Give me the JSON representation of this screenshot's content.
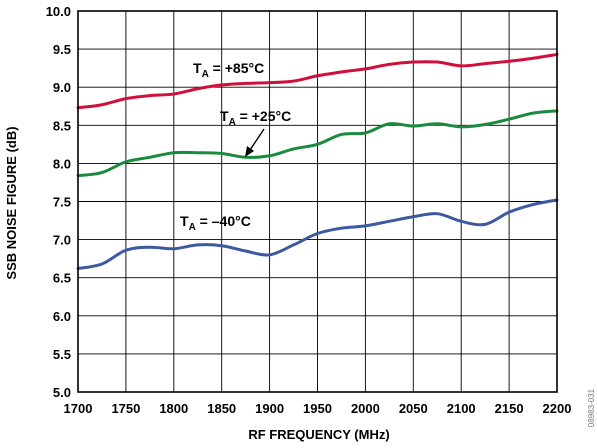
{
  "chart_data": {
    "type": "line",
    "xlabel": "RF FREQUENCY (MHz)",
    "ylabel": "SSB NOISE FIGURE (dB)",
    "xlim": [
      1700,
      2200
    ],
    "ylim": [
      5.0,
      10.0
    ],
    "x_ticks": [
      "1700",
      "1750",
      "1800",
      "1850",
      "1900",
      "1950",
      "2000",
      "2050",
      "2100",
      "2150",
      "2200"
    ],
    "y_ticks": [
      "5.0",
      "5.5",
      "6.0",
      "6.5",
      "7.0",
      "7.5",
      "8.0",
      "8.5",
      "9.0",
      "9.5",
      "10.0"
    ],
    "grid": true,
    "x": [
      1700,
      1725,
      1750,
      1775,
      1800,
      1825,
      1850,
      1875,
      1900,
      1925,
      1950,
      1975,
      2000,
      2025,
      2050,
      2075,
      2100,
      2125,
      2150,
      2175,
      2200
    ],
    "series": [
      {
        "color": "#d0103a",
        "values": [
          8.73,
          8.77,
          8.85,
          8.89,
          8.91,
          8.98,
          9.03,
          9.05,
          9.06,
          9.08,
          9.15,
          9.2,
          9.24,
          9.3,
          9.33,
          9.33,
          9.28,
          9.31,
          9.34,
          9.38,
          9.43
        ]
      },
      {
        "color": "#1a8a3e",
        "values": [
          7.84,
          7.88,
          8.02,
          8.08,
          8.14,
          8.14,
          8.13,
          8.08,
          8.1,
          8.19,
          8.25,
          8.38,
          8.4,
          8.52,
          8.49,
          8.52,
          8.48,
          8.51,
          8.58,
          8.66,
          8.69
        ]
      },
      {
        "color": "#3d5aa0",
        "values": [
          6.62,
          6.68,
          6.86,
          6.9,
          6.88,
          6.93,
          6.92,
          6.85,
          6.8,
          6.93,
          7.08,
          7.15,
          7.18,
          7.24,
          7.3,
          7.34,
          7.24,
          7.2,
          7.36,
          7.46,
          7.52
        ]
      }
    ],
    "annotations": [
      {
        "prefix": "T",
        "sub": "A",
        "suffix": " = +85°C"
      },
      {
        "prefix": "T",
        "sub": "A",
        "suffix": " = +25°C"
      },
      {
        "prefix": "T",
        "sub": "A",
        "suffix": " = –40°C"
      }
    ]
  },
  "watermark": "08983-031"
}
